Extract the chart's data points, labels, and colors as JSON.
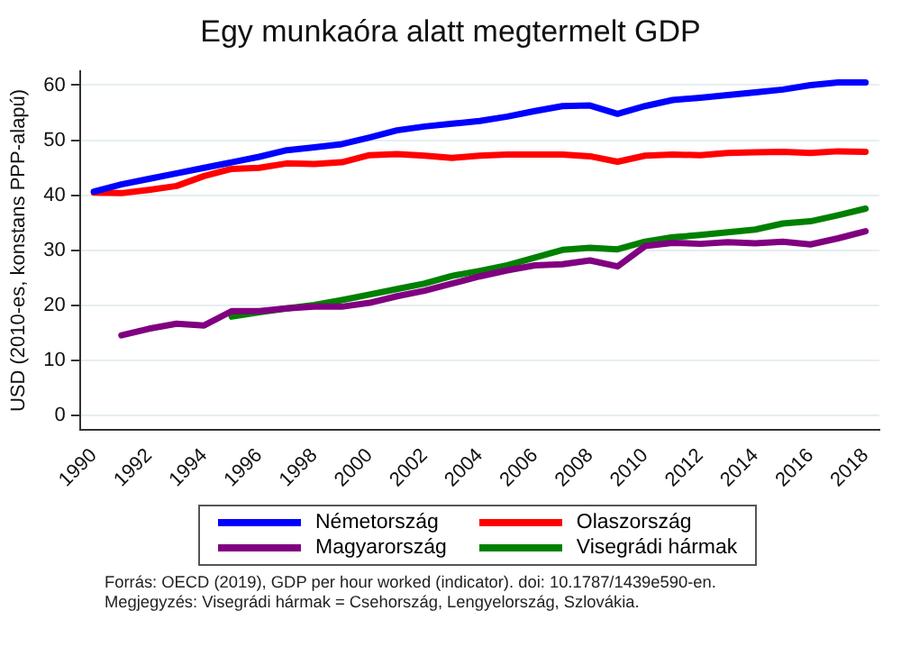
{
  "chart_data": {
    "type": "line",
    "title": "Egy munkaóra alatt megtermelt GDP",
    "ylabel": "USD (2010-es, konstans PPP-alapú)",
    "x": [
      1990,
      1991,
      1992,
      1993,
      1994,
      1995,
      1996,
      1997,
      1998,
      1999,
      2000,
      2001,
      2002,
      2003,
      2004,
      2005,
      2006,
      2007,
      2008,
      2009,
      2010,
      2011,
      2012,
      2013,
      2014,
      2015,
      2016,
      2017,
      2018
    ],
    "series": [
      {
        "name": "Németország",
        "color": "#0000ff",
        "values": [
          40.7,
          42,
          43,
          44,
          45,
          46,
          47,
          48.2,
          48.7,
          49.3,
          50.5,
          51.8,
          52.5,
          53,
          53.5,
          54.3,
          55.3,
          56.2,
          56.3,
          54.8,
          56.2,
          57.3,
          57.7,
          58.2,
          58.7,
          59.2,
          60,
          60.5,
          60.5
        ]
      },
      {
        "name": "Olaszország",
        "color": "#ff0000",
        "values": [
          40.5,
          40.4,
          41,
          41.7,
          43.5,
          44.8,
          45,
          45.8,
          45.7,
          46,
          47.3,
          47.5,
          47.2,
          46.8,
          47.2,
          47.4,
          47.4,
          47.4,
          47.1,
          46.1,
          47.2,
          47.4,
          47.3,
          47.7,
          47.8,
          47.9,
          47.7,
          48,
          47.9
        ]
      },
      {
        "name": "Magyarország",
        "color": "#800080",
        "values": [
          null,
          14.6,
          15.8,
          16.7,
          16.4,
          19,
          19,
          19.5,
          19.8,
          19.8,
          20.5,
          21.7,
          22.7,
          24,
          25.3,
          26.4,
          27.3,
          27.5,
          28.2,
          27.1,
          30.8,
          31.4,
          31.2,
          31.5,
          31.3,
          31.6,
          31.1,
          32.2,
          33.5
        ]
      },
      {
        "name": "Visegrádi hármak",
        "color": "#008000",
        "values": [
          null,
          null,
          null,
          null,
          null,
          18,
          18.8,
          19.5,
          20.1,
          21,
          22,
          23,
          24,
          25.4,
          26.3,
          27.3,
          28.7,
          30.1,
          30.5,
          30.2,
          31.6,
          32.4,
          32.8,
          33.3,
          33.8,
          34.9,
          35.3,
          36.4,
          37.6
        ]
      }
    ],
    "xlim": [
      1989.5,
      2018.5
    ],
    "xticks": [
      1990,
      1992,
      1994,
      1996,
      1998,
      2000,
      2002,
      2004,
      2006,
      2008,
      2010,
      2012,
      2014,
      2016,
      2018
    ],
    "ylim": [
      -2.5,
      62.5
    ],
    "yticks": [
      0,
      10,
      20,
      30,
      40,
      50,
      60
    ],
    "grid": "y",
    "legend": "bottom",
    "marker": "none",
    "line_style": "solid",
    "annotations": [
      "Forrás: OECD (2019), GDP per hour worked (indicator). doi: 10.1787/1439e590-en.",
      "Megjegyzés: Visegrádi hármak = Csehország, Lengyelország, Szlovákia."
    ]
  }
}
